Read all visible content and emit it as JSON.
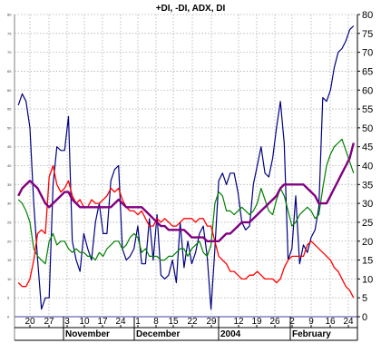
{
  "chart_data": {
    "type": "line",
    "title": "+DI, -DI, ADX, DI",
    "ylim": [
      0,
      80
    ],
    "y_ticks": [
      0,
      5,
      10,
      15,
      20,
      25,
      30,
      35,
      40,
      45,
      50,
      55,
      60,
      65,
      70,
      75,
      80
    ],
    "grid": true,
    "x_day_labels": [
      "20",
      "27",
      "3",
      "10",
      "17",
      "24",
      "1",
      "8",
      "15",
      "22",
      "29",
      "12",
      "19",
      "26",
      "2",
      "9",
      "16",
      "24"
    ],
    "x_month_labels": [
      "November",
      "December",
      "2004",
      "February"
    ],
    "series": [
      {
        "color": "#000080",
        "values": [
          56,
          59,
          57,
          50,
          30,
          15,
          2,
          5,
          5,
          35,
          45,
          44,
          44,
          53,
          20,
          15,
          12,
          22,
          18,
          15,
          25,
          30,
          22,
          22,
          36,
          39,
          40,
          18,
          15,
          16,
          18,
          24,
          14,
          14,
          26,
          15,
          27,
          11,
          10,
          11,
          15,
          9,
          25,
          13,
          20,
          14,
          17,
          22,
          24,
          16,
          2,
          18,
          36,
          38,
          35,
          38,
          38,
          33,
          25,
          23,
          24,
          35,
          40,
          45,
          38,
          37,
          42,
          50,
          57,
          46,
          15,
          18,
          32,
          14,
          19,
          17,
          21,
          23,
          29,
          58,
          57,
          60,
          66,
          70,
          71,
          73,
          76,
          77
        ]
      },
      {
        "color": "#008000",
        "values": [
          31,
          30,
          28,
          25,
          18,
          16,
          15,
          14,
          20,
          22,
          19,
          20,
          20,
          18,
          17,
          18,
          17,
          17,
          16,
          16,
          15,
          17,
          16,
          18,
          19,
          20,
          20,
          18,
          19,
          21,
          22,
          21,
          17,
          18,
          16,
          16,
          16,
          15,
          15,
          16,
          16,
          17,
          18,
          18,
          16,
          18,
          19,
          20,
          17,
          16,
          19,
          30,
          33,
          32,
          28,
          28,
          27,
          28,
          29,
          28,
          27,
          28,
          30,
          34,
          31,
          28,
          27,
          31,
          34,
          32,
          28,
          24,
          25,
          27,
          28,
          29,
          28,
          26,
          27,
          34,
          40,
          43,
          45,
          46,
          47,
          44,
          41,
          38
        ]
      },
      {
        "color": "#ff0000",
        "values": [
          9,
          8,
          8,
          10,
          15,
          22,
          23,
          22,
          37,
          40,
          35,
          33,
          34,
          36,
          32,
          30,
          31,
          29,
          29,
          31,
          30,
          30,
          31,
          32,
          34,
          33,
          34,
          31,
          29,
          28,
          28,
          27,
          28,
          26,
          24,
          24,
          26,
          25,
          26,
          25,
          24,
          24,
          25,
          26,
          26,
          26,
          25,
          26,
          26,
          24,
          24,
          20,
          16,
          15,
          14,
          12,
          12,
          11,
          10,
          10,
          11,
          11,
          12,
          11,
          10,
          10,
          10,
          9,
          10,
          13,
          15,
          16,
          16,
          16,
          16,
          19,
          20,
          19,
          18,
          17,
          16,
          15,
          13,
          12,
          10,
          8,
          7,
          5
        ]
      },
      {
        "color": "#800080",
        "values": [
          32,
          34,
          35,
          36,
          35,
          34,
          32,
          30,
          29,
          30,
          31,
          32,
          33,
          33,
          31,
          30,
          29,
          29,
          29,
          29,
          29,
          29,
          29,
          29,
          29,
          30,
          31,
          30,
          29,
          29,
          29,
          29,
          29,
          28,
          27,
          26,
          25,
          24,
          24,
          23,
          23,
          23,
          23,
          23,
          22,
          21,
          21,
          21,
          21,
          20,
          20,
          20,
          20,
          21,
          22,
          22,
          23,
          24,
          25,
          25,
          25,
          26,
          27,
          28,
          29,
          30,
          31,
          32,
          34,
          35,
          35,
          35,
          35,
          35,
          35,
          34,
          33,
          32,
          30,
          30,
          30,
          32,
          34,
          36,
          38,
          40,
          42,
          46
        ]
      }
    ]
  }
}
